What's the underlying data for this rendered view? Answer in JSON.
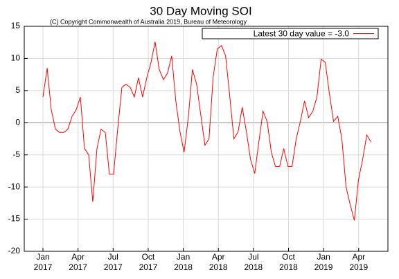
{
  "chart_data": {
    "type": "line",
    "title": "30 Day Moving SOI",
    "subtitle": "(C) Copyright Commonwealth of Australia 2019, Bureau of Meteorology",
    "x": [
      0,
      0.36,
      0.71,
      1.07,
      1.42,
      1.78,
      2.13,
      2.49,
      2.84,
      3.2,
      3.55,
      3.91,
      4.26,
      4.62,
      4.97,
      5.33,
      5.68,
      6.04,
      6.39,
      6.75,
      7.1,
      7.46,
      7.81,
      8.17,
      8.52,
      8.88,
      9.23,
      9.59,
      9.94,
      10.3,
      10.65,
      11.01,
      11.36,
      11.72,
      12.07,
      12.43,
      12.78,
      13.14,
      13.49,
      13.85,
      14.2,
      14.56,
      14.91,
      15.27,
      15.62,
      15.98,
      16.33,
      16.69,
      17.04,
      17.4,
      17.75,
      18.11,
      18.46,
      18.82,
      19.17,
      19.53,
      19.88,
      20.24,
      20.59,
      20.95,
      21.3,
      21.66,
      22.01,
      22.37,
      22.72,
      23.08,
      23.43,
      23.79,
      24.14,
      24.5,
      24.85,
      25.21,
      25.56,
      25.92,
      26.27,
      26.63,
      26.98,
      27.34,
      27.69,
      28.05
    ],
    "series": [
      {
        "name": "Latest 30 day value = -3.0",
        "color": "#ff0000",
        "values": [
          4,
          8.5,
          2,
          -1,
          -1.5,
          -1.5,
          -1,
          1,
          2,
          4,
          -4,
          -5,
          -12.3,
          -4,
          -1,
          -1.5,
          -8,
          -8,
          -1,
          5.5,
          6,
          5.5,
          4,
          7,
          4,
          7,
          9.3,
          12.6,
          8.3,
          6.7,
          7.7,
          10.4,
          3.4,
          -1.4,
          -4.6,
          0.8,
          8.3,
          6,
          1.3,
          -3.5,
          -2.5,
          7.2,
          11.5,
          12,
          10.4,
          4,
          -2.5,
          -1.4,
          2.4,
          -1.4,
          -5.7,
          -7.9,
          -3,
          1.8,
          0.2,
          -4.6,
          -6.8,
          -6.8,
          -4,
          -6.8,
          -6.8,
          -2.5,
          0.2,
          3.4,
          0.8,
          1.8,
          4,
          9.9,
          9.4,
          4.5,
          0.2,
          1,
          -2.5,
          -10,
          -12.7,
          -15.2,
          -8.9,
          -5.7,
          -1.9,
          -3
        ]
      }
    ],
    "xlim": [
      -1.6,
      29.5
    ],
    "xticks": [
      {
        "value": 0,
        "label": "Jan 2017"
      },
      {
        "value": 3,
        "label": "Apr 2017"
      },
      {
        "value": 6,
        "label": "Jul 2017"
      },
      {
        "value": 9,
        "label": "Oct 2017"
      },
      {
        "value": 12,
        "label": "Jan 2018"
      },
      {
        "value": 15,
        "label": "Apr 2018"
      },
      {
        "value": 18,
        "label": "Jul 2018"
      },
      {
        "value": 21,
        "label": "Oct 2018"
      },
      {
        "value": 24,
        "label": "Jan 2019"
      },
      {
        "value": 27,
        "label": "Apr 2019"
      }
    ],
    "ylim": [
      -20,
      15
    ],
    "yticks": [
      -20,
      -15,
      -10,
      -5,
      0,
      5,
      10,
      15
    ],
    "grid": true,
    "legend": "top-right"
  }
}
